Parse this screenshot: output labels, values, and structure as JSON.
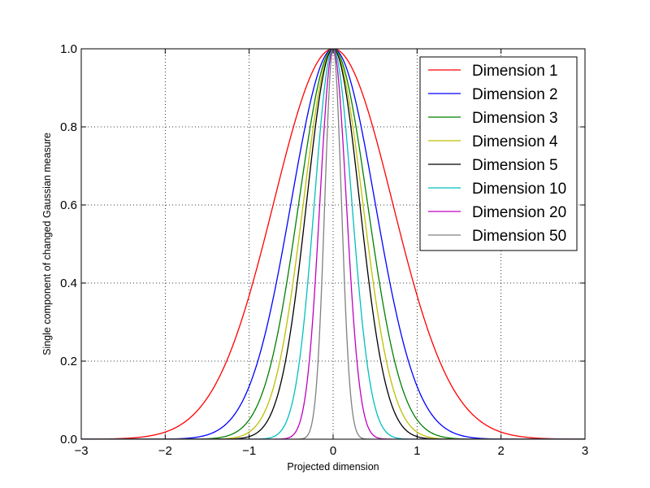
{
  "chart_data": {
    "type": "line",
    "title": "",
    "xlabel": "Projected dimension",
    "ylabel": "Single component of changed Gaussian measure",
    "xlim": [
      -3,
      3
    ],
    "ylim": [
      0,
      1.0
    ],
    "grid": true,
    "grid_style": "dotted",
    "legend_position": "top-right",
    "function": "exp(-d * x^2)",
    "x_ticks": [
      -3,
      -2,
      -1,
      0,
      1,
      2,
      3
    ],
    "x_tick_labels": [
      "−3",
      "−2",
      "−1",
      "0",
      "1",
      "2",
      "3"
    ],
    "y_ticks": [
      0,
      0.2,
      0.4,
      0.6,
      0.8,
      1.0
    ],
    "y_tick_labels": [
      "0.0",
      "0.2",
      "0.4",
      "0.6",
      "0.8",
      "1.0"
    ],
    "series": [
      {
        "name": "Dimension 1",
        "dimension": 1,
        "color": "#ff0000"
      },
      {
        "name": "Dimension 2",
        "dimension": 2,
        "color": "#0000ff"
      },
      {
        "name": "Dimension 3",
        "dimension": 3,
        "color": "#008000"
      },
      {
        "name": "Dimension 4",
        "dimension": 4,
        "color": "#bfbf00"
      },
      {
        "name": "Dimension 5",
        "dimension": 5,
        "color": "#000000"
      },
      {
        "name": "Dimension 10",
        "dimension": 10,
        "color": "#00bfbf"
      },
      {
        "name": "Dimension 20",
        "dimension": 20,
        "color": "#bf00bf"
      },
      {
        "name": "Dimension 50",
        "dimension": 50,
        "color": "#808080"
      }
    ]
  }
}
